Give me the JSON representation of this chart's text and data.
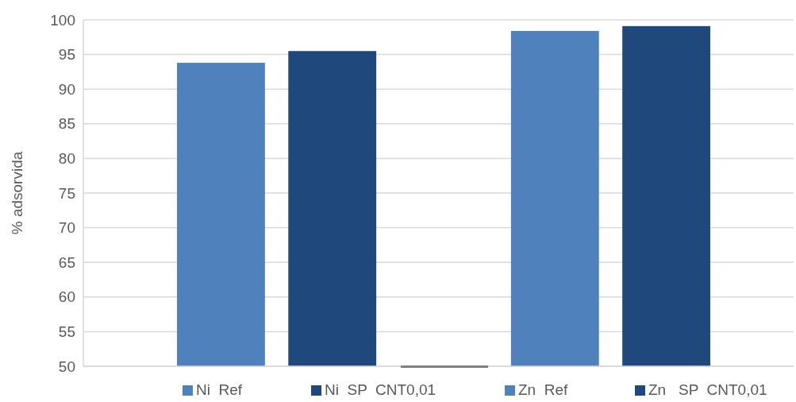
{
  "chart_data": {
    "type": "bar",
    "ylabel": "% adsorvida",
    "categories": [
      null,
      null,
      null,
      null,
      null
    ],
    "series": [
      {
        "name": "Ni  Ref",
        "color": "#4f81bd",
        "values": [
          93.8,
          null,
          null,
          null,
          null
        ]
      },
      {
        "name": "Ni  SP  CNT0,01",
        "color": "#1f497d",
        "values": [
          null,
          95.5,
          null,
          null,
          null
        ]
      },
      {
        "name": "Zn  Ref",
        "color": "#4f81bd",
        "values": [
          null,
          null,
          null,
          98.4,
          null
        ]
      },
      {
        "name": "Zn   SP  CNT0,01",
        "color": "#1f497d",
        "values": [
          null,
          null,
          null,
          null,
          99.1
        ]
      }
    ],
    "ylim": [
      50,
      100
    ],
    "yticks": [
      50,
      55,
      60,
      65,
      70,
      75,
      80,
      85,
      90,
      95,
      100
    ],
    "grid": "y",
    "legend": "bottom",
    "tick_labels": "y"
  }
}
